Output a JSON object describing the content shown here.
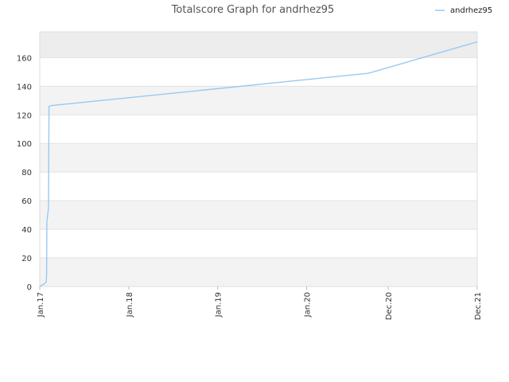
{
  "chart_data": {
    "type": "line",
    "title": "Totalscore Graph for andrhez95",
    "xlabel": "",
    "ylabel": "",
    "x_range": [
      "2017-01-01",
      "2021-12-01"
    ],
    "ylim": [
      0,
      178
    ],
    "y_ticks": [
      0,
      20,
      40,
      60,
      80,
      100,
      120,
      140,
      160
    ],
    "x_ticks": [
      {
        "date": "2017-01-01",
        "label": "Jan.17"
      },
      {
        "date": "2018-01-01",
        "label": "Jan.18"
      },
      {
        "date": "2019-01-01",
        "label": "Jan.19"
      },
      {
        "date": "2020-01-01",
        "label": "Jan.20"
      },
      {
        "date": "2020-12-01",
        "label": "Dec.20"
      },
      {
        "date": "2021-12-01",
        "label": "Dec.21"
      }
    ],
    "grid": true,
    "legend": {
      "position": "top-right",
      "entries": [
        "andrhez95"
      ]
    },
    "series": [
      {
        "name": "andrhez95",
        "color": "#99c9f3",
        "points": [
          {
            "x": "2017-01-01",
            "y": 0
          },
          {
            "x": "2017-01-20",
            "y": 2
          },
          {
            "x": "2017-01-27",
            "y": 3
          },
          {
            "x": "2017-01-29",
            "y": 8
          },
          {
            "x": "2017-01-30",
            "y": 45
          },
          {
            "x": "2017-02-06",
            "y": 55
          },
          {
            "x": "2017-02-08",
            "y": 126
          },
          {
            "x": "2017-02-20",
            "y": 126.5
          },
          {
            "x": "2020-09-10",
            "y": 149
          },
          {
            "x": "2021-12-01",
            "y": 171
          }
        ]
      }
    ]
  }
}
